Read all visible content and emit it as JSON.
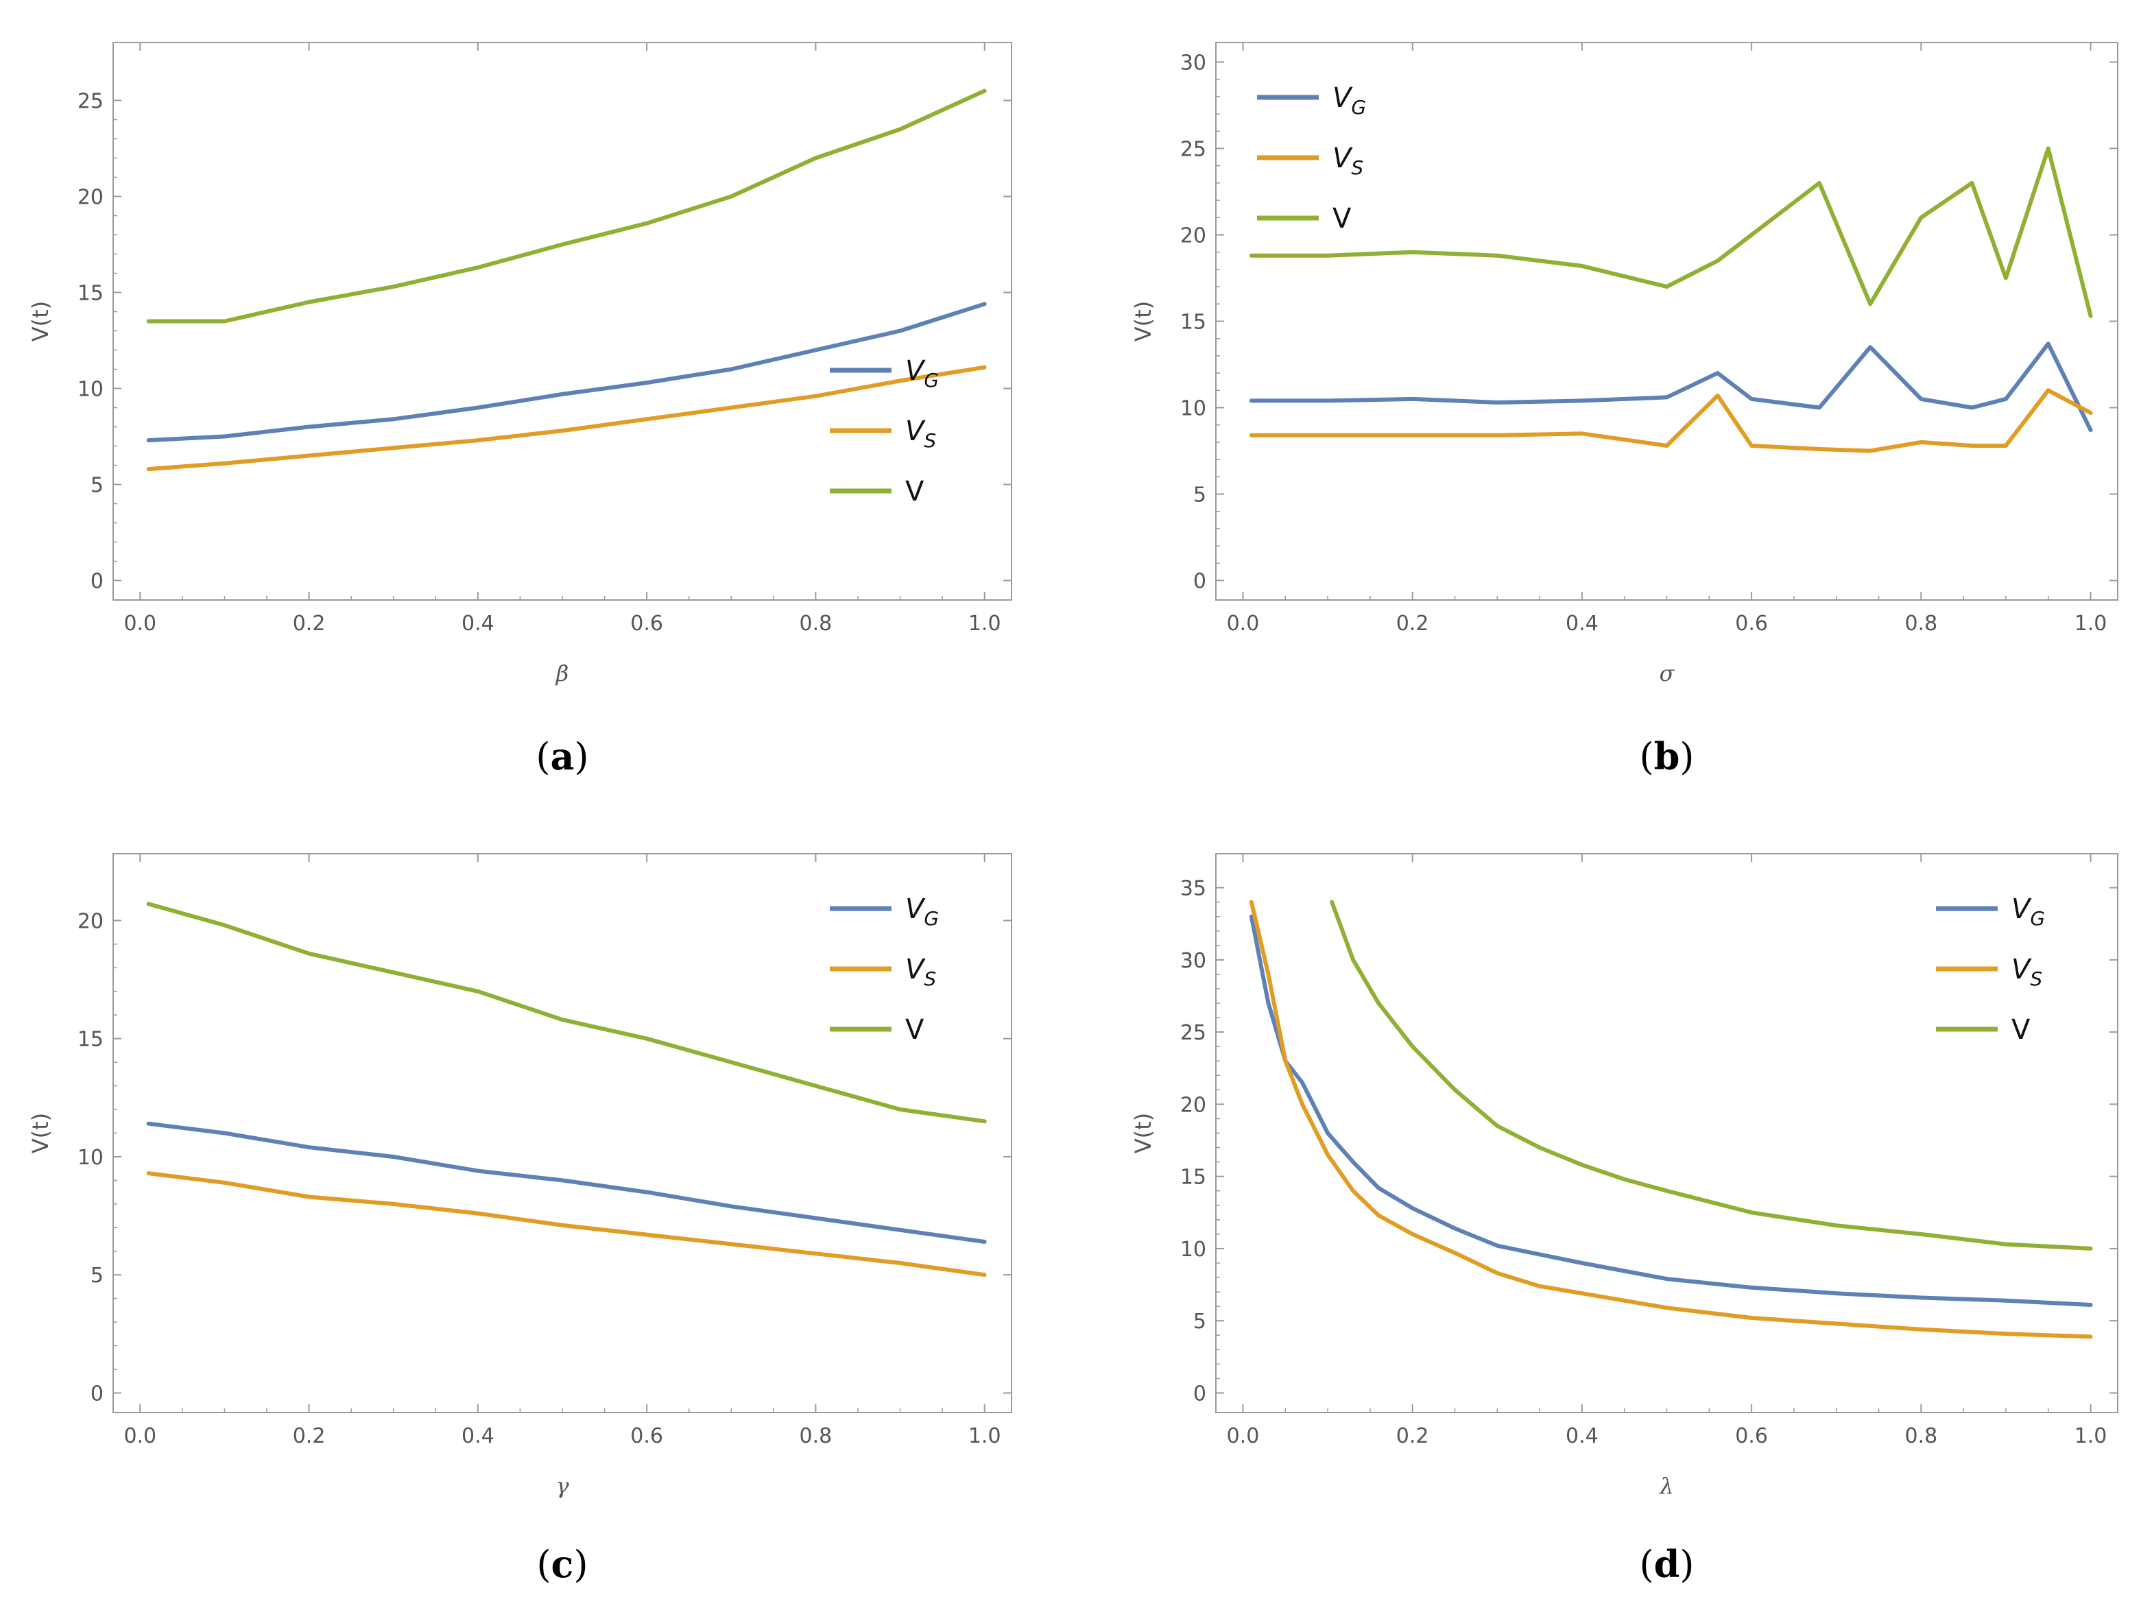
{
  "colors": {
    "VG": "#5e81b5",
    "VS": "#e19c24",
    "V": "#8fb032",
    "frame": "#9a9a9a"
  },
  "chart_data": [
    {
      "type": "line",
      "caption": "(a)",
      "caption_letter": "a",
      "xlabel": "β",
      "ylabel": "V(t)",
      "xlim": [
        0,
        1
      ],
      "ylim": [
        0,
        27
      ],
      "xticks": [
        "0.0",
        "0.2",
        "0.4",
        "0.6",
        "0.8",
        "1.0"
      ],
      "yticks": [
        "0",
        "5",
        "10",
        "15",
        "20",
        "25"
      ],
      "yticks_values": [
        0,
        5,
        10,
        15,
        20,
        25
      ],
      "legend": {
        "position": "lower-right",
        "entries": [
          {
            "base": "V",
            "sub": "G"
          },
          {
            "base": "V",
            "sub": "S"
          },
          {
            "base": "V",
            "sub": ""
          }
        ]
      },
      "x": [
        0.01,
        0.1,
        0.2,
        0.3,
        0.4,
        0.5,
        0.6,
        0.7,
        0.8,
        0.9,
        1.0
      ],
      "series": [
        {
          "name": "V_G",
          "values": [
            7.3,
            7.5,
            8.0,
            8.4,
            9.0,
            9.7,
            10.3,
            11.0,
            12.0,
            13.0,
            14.4
          ]
        },
        {
          "name": "V_S",
          "values": [
            5.8,
            6.1,
            6.5,
            6.9,
            7.3,
            7.8,
            8.4,
            9.0,
            9.6,
            10.4,
            11.1
          ]
        },
        {
          "name": "V",
          "values": [
            13.5,
            13.5,
            14.5,
            15.3,
            16.3,
            17.5,
            18.6,
            20.0,
            22.0,
            23.5,
            25.5
          ]
        }
      ]
    },
    {
      "type": "line",
      "caption": "(b)",
      "caption_letter": "b",
      "xlabel": "σ",
      "ylabel": "V(t)",
      "xlim": [
        0,
        1
      ],
      "ylim": [
        0,
        30
      ],
      "xticks": [
        "0.0",
        "0.2",
        "0.4",
        "0.6",
        "0.8",
        "1.0"
      ],
      "yticks": [
        "0",
        "5",
        "10",
        "15",
        "20",
        "25",
        "30"
      ],
      "yticks_values": [
        0,
        5,
        10,
        15,
        20,
        25,
        30
      ],
      "legend": {
        "position": "top-left",
        "entries": [
          {
            "base": "V",
            "sub": "G"
          },
          {
            "base": "V",
            "sub": "S"
          },
          {
            "base": "V",
            "sub": ""
          }
        ]
      },
      "x": [
        0.01,
        0.1,
        0.2,
        0.3,
        0.4,
        0.5,
        0.56,
        0.6,
        0.68,
        0.74,
        0.8,
        0.86,
        0.9,
        0.95,
        1.0
      ],
      "series": [
        {
          "name": "V_G",
          "values": [
            10.4,
            10.4,
            10.5,
            10.3,
            10.4,
            10.6,
            12.0,
            10.5,
            10.0,
            13.5,
            10.5,
            10.0,
            10.5,
            13.7,
            8.7
          ]
        },
        {
          "name": "V_S",
          "values": [
            8.4,
            8.4,
            8.4,
            8.4,
            8.5,
            7.8,
            10.7,
            7.8,
            7.6,
            7.5,
            8.0,
            7.8,
            7.8,
            11.0,
            9.7
          ]
        },
        {
          "name": "V",
          "values": [
            18.8,
            18.8,
            19.0,
            18.8,
            18.2,
            17.0,
            18.5,
            20.0,
            23.0,
            16.0,
            21.0,
            23.0,
            17.5,
            25.0,
            15.3
          ]
        }
      ]
    },
    {
      "type": "line",
      "caption": "(c)",
      "caption_letter": "c",
      "xlabel": "γ",
      "ylabel": "V(t)",
      "xlim": [
        0,
        1
      ],
      "ylim": [
        0,
        22
      ],
      "xticks": [
        "0.0",
        "0.2",
        "0.4",
        "0.6",
        "0.8",
        "1.0"
      ],
      "yticks": [
        "0",
        "5",
        "10",
        "15",
        "20"
      ],
      "yticks_values": [
        0,
        5,
        10,
        15,
        20
      ],
      "legend": {
        "position": "top-right",
        "entries": [
          {
            "base": "V",
            "sub": "G"
          },
          {
            "base": "V",
            "sub": "S"
          },
          {
            "base": "V",
            "sub": ""
          }
        ]
      },
      "x": [
        0.01,
        0.1,
        0.2,
        0.3,
        0.4,
        0.5,
        0.6,
        0.7,
        0.8,
        0.9,
        1.0
      ],
      "series": [
        {
          "name": "V_G",
          "values": [
            11.4,
            11.0,
            10.4,
            10.0,
            9.4,
            9.0,
            8.5,
            7.9,
            7.4,
            6.9,
            6.4
          ]
        },
        {
          "name": "V_S",
          "values": [
            9.3,
            8.9,
            8.3,
            8.0,
            7.6,
            7.1,
            6.7,
            6.3,
            5.9,
            5.5,
            5.0
          ]
        },
        {
          "name": "V",
          "values": [
            20.7,
            19.8,
            18.6,
            17.8,
            17.0,
            15.8,
            15.0,
            14.0,
            13.0,
            12.0,
            11.5
          ]
        }
      ]
    },
    {
      "type": "line",
      "caption": "(d)",
      "caption_letter": "d",
      "xlabel": "λ",
      "ylabel": "V(t)",
      "xlim": [
        0,
        1
      ],
      "ylim": [
        0,
        36
      ],
      "xticks": [
        "0.0",
        "0.2",
        "0.4",
        "0.6",
        "0.8",
        "1.0"
      ],
      "yticks": [
        "0",
        "5",
        "10",
        "15",
        "20",
        "25",
        "30",
        "35"
      ],
      "yticks_values": [
        0,
        5,
        10,
        15,
        20,
        25,
        30,
        35
      ],
      "legend": {
        "position": "top-right",
        "entries": [
          {
            "base": "V",
            "sub": "G"
          },
          {
            "base": "V",
            "sub": "S"
          },
          {
            "base": "V",
            "sub": ""
          }
        ]
      },
      "series": [
        {
          "name": "V_G",
          "x": [
            0.01,
            0.03,
            0.05,
            0.07,
            0.1,
            0.13,
            0.16,
            0.2,
            0.25,
            0.3,
            0.35,
            0.4,
            0.5,
            0.6,
            0.7,
            0.8,
            0.9,
            1.0
          ],
          "values": [
            33.0,
            27.0,
            23.0,
            21.5,
            18.0,
            16.0,
            14.2,
            12.8,
            11.4,
            10.2,
            9.6,
            9.0,
            7.9,
            7.3,
            6.9,
            6.6,
            6.4,
            6.1
          ]
        },
        {
          "name": "V_S",
          "x": [
            0.01,
            0.03,
            0.05,
            0.07,
            0.1,
            0.13,
            0.16,
            0.2,
            0.25,
            0.3,
            0.35,
            0.4,
            0.5,
            0.6,
            0.7,
            0.8,
            0.9,
            1.0
          ],
          "values": [
            34.0,
            29.0,
            23.0,
            20.0,
            16.5,
            14.0,
            12.3,
            11.0,
            9.7,
            8.3,
            7.4,
            6.9,
            5.9,
            5.2,
            4.8,
            4.4,
            4.1,
            3.9
          ]
        },
        {
          "name": "V",
          "x": [
            0.105,
            0.13,
            0.16,
            0.2,
            0.25,
            0.3,
            0.35,
            0.4,
            0.45,
            0.5,
            0.6,
            0.7,
            0.8,
            0.9,
            1.0
          ],
          "values": [
            34.0,
            30.0,
            27.0,
            24.0,
            21.0,
            18.5,
            17.0,
            15.8,
            14.8,
            14.0,
            12.5,
            11.6,
            11.0,
            10.3,
            10.0
          ]
        }
      ]
    }
  ]
}
